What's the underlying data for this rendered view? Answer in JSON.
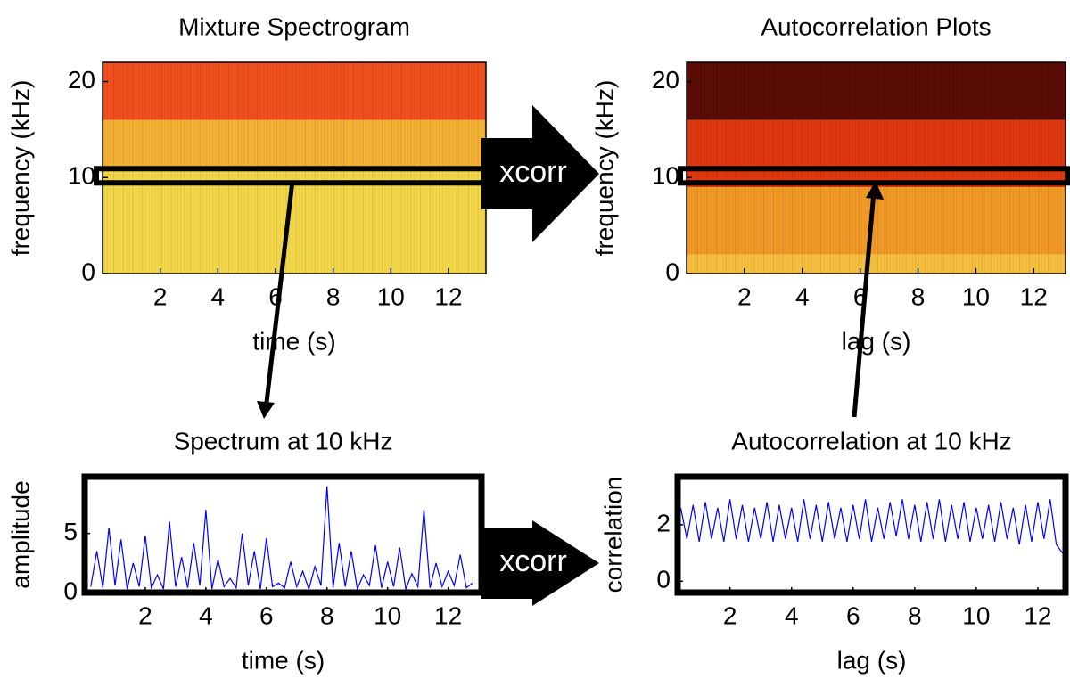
{
  "chart_data": [
    {
      "type": "heatmap",
      "title": "Mixture Spectrogram",
      "xlabel": "time (s)",
      "ylabel": "frequency (kHz)",
      "xlim": [
        0,
        13.3
      ],
      "ylim": [
        0,
        22
      ],
      "xticks": [
        2,
        4,
        6,
        8,
        10,
        12
      ],
      "yticks": [
        0,
        10,
        20
      ],
      "bands": [
        {
          "from": 0,
          "to": 11,
          "color": "#f5d84a"
        },
        {
          "from": 11,
          "to": 16,
          "color": "#f4b236"
        },
        {
          "from": 16,
          "to": 22,
          "color": "#f0501e"
        }
      ],
      "highlight": 10,
      "annotation": "xcorr"
    },
    {
      "type": "heatmap",
      "title": "Autocorrelation Plots",
      "xlabel": "lag (s)",
      "ylabel": "frequency (kHz)",
      "xlim": [
        0,
        13.1
      ],
      "ylim": [
        0,
        22
      ],
      "xticks": [
        2,
        4,
        6,
        8,
        10,
        12
      ],
      "yticks": [
        0,
        10,
        20
      ],
      "bands": [
        {
          "from": 0,
          "to": 2,
          "color": "#f7c040"
        },
        {
          "from": 2,
          "to": 9,
          "color": "#f29a28"
        },
        {
          "from": 9,
          "to": 16,
          "color": "#e0380e"
        },
        {
          "from": 16,
          "to": 22,
          "color": "#5c0c06"
        }
      ],
      "highlight": 10
    },
    {
      "type": "line",
      "title": "Spectrum at 10 kHz",
      "xlabel": "time (s)",
      "ylabel": "amplitude",
      "xlim": [
        0,
        13.1
      ],
      "ylim": [
        0,
        9.8
      ],
      "xticks": [
        2,
        4,
        6,
        8,
        10,
        12
      ],
      "yticks": [
        0,
        5
      ],
      "color": "#0000ff",
      "x": [
        0.2,
        0.4,
        0.6,
        0.8,
        1.0,
        1.2,
        1.4,
        1.6,
        1.8,
        2.0,
        2.2,
        2.4,
        2.6,
        2.8,
        3.0,
        3.2,
        3.4,
        3.6,
        3.8,
        4.0,
        4.2,
        4.4,
        4.6,
        4.8,
        5.0,
        5.2,
        5.4,
        5.6,
        5.8,
        6.0,
        6.2,
        6.4,
        6.6,
        6.8,
        7.0,
        7.2,
        7.4,
        7.6,
        7.8,
        8.0,
        8.2,
        8.4,
        8.6,
        8.8,
        9.0,
        9.2,
        9.4,
        9.6,
        9.8,
        10.0,
        10.2,
        10.4,
        10.6,
        10.8,
        11.0,
        11.2,
        11.4,
        11.6,
        11.8,
        12.0,
        12.2,
        12.4,
        12.6,
        12.8
      ],
      "values": [
        0.5,
        3.5,
        0.4,
        5.5,
        0.6,
        4.5,
        0.3,
        2.5,
        0.5,
        4.8,
        0.4,
        1.5,
        0.3,
        6.0,
        0.5,
        3.0,
        0.4,
        4.2,
        0.6,
        7.0,
        0.3,
        2.8,
        0.5,
        1.2,
        0.4,
        5.0,
        0.6,
        3.5,
        0.3,
        4.6,
        0.5,
        0.8,
        0.4,
        2.6,
        0.5,
        1.8,
        0.3,
        2.2,
        0.6,
        9.0,
        0.4,
        4.2,
        0.5,
        3.5,
        0.3,
        1.5,
        0.6,
        4.0,
        0.4,
        2.6,
        0.5,
        3.8,
        0.3,
        1.6,
        0.5,
        7.0,
        0.4,
        2.5,
        0.5,
        1.8,
        0.6,
        3.2,
        0.4,
        0.8
      ],
      "annotation": "xcorr"
    },
    {
      "type": "line",
      "title": "Autocorrelation at 10 kHz",
      "xlabel": "lag (s)",
      "ylabel": "correlation",
      "xlim": [
        0.3,
        12.9
      ],
      "ylim": [
        -0.4,
        3.7
      ],
      "xticks": [
        2,
        4,
        6,
        8,
        10,
        12
      ],
      "yticks": [
        0,
        2
      ],
      "color": "#0000ff",
      "x": [
        0.4,
        0.6,
        0.8,
        1.0,
        1.2,
        1.4,
        1.6,
        1.8,
        2.0,
        2.2,
        2.4,
        2.6,
        2.8,
        3.0,
        3.2,
        3.4,
        3.6,
        3.8,
        4.0,
        4.2,
        4.4,
        4.6,
        4.8,
        5.0,
        5.2,
        5.4,
        5.6,
        5.8,
        6.0,
        6.2,
        6.4,
        6.6,
        6.8,
        7.0,
        7.2,
        7.4,
        7.6,
        7.8,
        8.0,
        8.2,
        8.4,
        8.6,
        8.8,
        9.0,
        9.2,
        9.4,
        9.6,
        9.8,
        10.0,
        10.2,
        10.4,
        10.6,
        10.8,
        11.0,
        11.2,
        11.4,
        11.6,
        11.8,
        12.0,
        12.2,
        12.4,
        12.6,
        12.8
      ],
      "values": [
        2.6,
        1.5,
        2.7,
        1.4,
        2.8,
        1.5,
        2.6,
        1.4,
        2.9,
        1.5,
        2.7,
        1.4,
        2.6,
        1.5,
        2.8,
        1.4,
        2.7,
        1.5,
        2.6,
        1.4,
        2.9,
        1.5,
        2.7,
        1.4,
        2.8,
        1.5,
        2.6,
        1.4,
        2.7,
        1.5,
        2.9,
        1.4,
        2.6,
        1.5,
        2.8,
        1.6,
        2.9,
        1.5,
        2.7,
        1.4,
        2.8,
        1.5,
        2.9,
        1.4,
        2.7,
        1.5,
        2.8,
        1.4,
        2.6,
        1.5,
        2.7,
        1.4,
        2.8,
        1.5,
        2.6,
        1.3,
        2.7,
        1.4,
        2.8,
        1.5,
        2.9,
        1.3,
        1.0
      ]
    }
  ]
}
